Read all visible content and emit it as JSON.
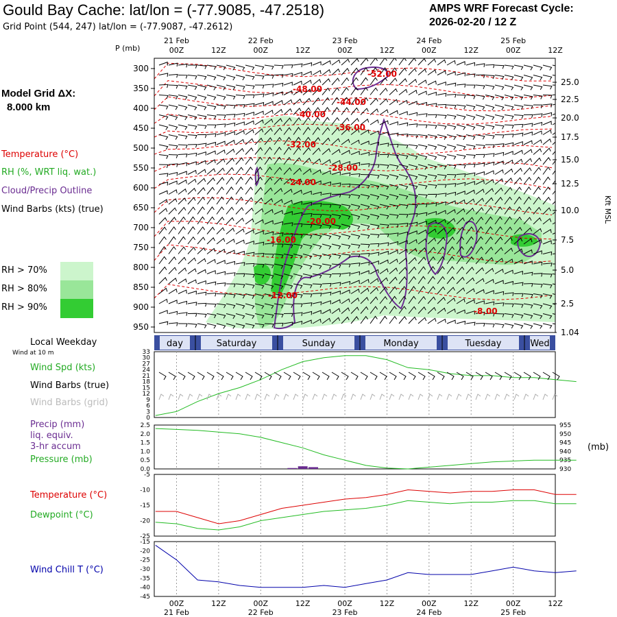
{
  "header": {
    "title": "Gould Bay Cache:  lat/lon = (-77.9085, -47.2518)",
    "subtitle": "Grid Point (544, 247) lat/lon = (-77.9087, -47.2612)",
    "cycle_line1": "AMPS WRF Forecast Cycle:",
    "cycle_line2": "2026-02-20 / 12  Z"
  },
  "left_panel": {
    "grid_label": "Model Grid ΔX:",
    "grid_value": "8.000 km",
    "temperature": "Temperature (°C)",
    "rh": "RH (%, WRT liq. wat.)",
    "cloud": "Cloud/Precip Outline",
    "wind": "Wind Barbs (kts) (true)",
    "rh70": "RH > 70%",
    "rh80": "RH > 80%",
    "rh90": "RH > 90%",
    "weekday_title": "Local Weekday",
    "wind10m": "Wind at 10 m",
    "wind_spd": "Wind Spd (kts)",
    "barbs_true": "Wind Barbs (true)",
    "barbs_grid": "Wind Barbs (grid)",
    "precip1": "Precip (mm)",
    "precip2": "liq. equiv.",
    "precip3": "3-hr accum",
    "pressure": "Pressure (mb)",
    "temp2": "Temperature (°C)",
    "dewpoint": "Dewpoint (°C)",
    "windchill": "Wind Chill T (°C)"
  },
  "axes": {
    "p_label": "P (mb)",
    "kft_label": "Kft MSL",
    "mb_label": "(mb)",
    "pressure_ticks": [
      "300",
      "350",
      "400",
      "450",
      "500",
      "550",
      "600",
      "650",
      "700",
      "750",
      "800",
      "850",
      "900",
      "950"
    ],
    "kft_ticks": [
      "25.0",
      "22.5",
      "20.0",
      "17.5",
      "15.0",
      "12.5",
      "10.0",
      "7.5",
      "5.0",
      "2.5",
      "1.04"
    ],
    "time_ticks": [
      "00Z",
      "12Z",
      "00Z",
      "12Z",
      "00Z",
      "12Z",
      "00Z",
      "12Z",
      "00Z",
      "12Z"
    ],
    "date_ticks": [
      "21 Feb",
      "22 Feb",
      "23 Feb",
      "24 Feb",
      "25 Feb"
    ],
    "weekdays": [
      "day",
      "Saturday",
      "Sunday",
      "Monday",
      "Tuesday",
      "Wed"
    ],
    "wind_ticks": [
      "33",
      "30",
      "27",
      "24",
      "21",
      "18",
      "15",
      "12",
      "9",
      "6",
      "3",
      "0"
    ],
    "precip_ticks": [
      "2.5",
      "2.0",
      "1.5",
      "1.0",
      "0.5",
      "0.0"
    ],
    "mslp_ticks": [
      "955",
      "950",
      "945",
      "940",
      "935",
      "930"
    ],
    "temp_ticks": [
      "-5",
      "-10",
      "-15",
      "-20",
      "-25"
    ],
    "chill_ticks": [
      "-15",
      "-20",
      "-25",
      "-30",
      "-35",
      "-40",
      "-45"
    ]
  },
  "contour_labels": [
    "-52.00",
    "-48.00",
    "-44.00",
    "-40.00",
    "-36.00",
    "-32.00",
    "-28.00",
    "-24.00",
    "-20.00",
    "-16.00",
    "-12.00",
    "-8.00"
  ],
  "colors": {
    "rh70": "#ccf5cc",
    "rh80": "#99e699",
    "rh90": "#33cc33",
    "temp": "#dd0000",
    "dew": "#22bb22",
    "cloud": "#6a2c91",
    "chill": "#0000aa",
    "weekday_bar": "#3a4fa0"
  },
  "chart_data": [
    {
      "type": "line",
      "title": "Wind Spd (kts)",
      "x_hours": [
        0,
        6,
        12,
        18,
        24,
        30,
        36,
        42,
        48,
        54,
        60,
        66,
        72,
        78,
        84,
        90,
        96,
        102,
        108,
        114,
        120
      ],
      "series": [
        {
          "name": "Wind Spd (kts)",
          "values": [
            1,
            3,
            8,
            12,
            15,
            19,
            24,
            28,
            30,
            31,
            31,
            29,
            25,
            24,
            22,
            21,
            21,
            20,
            20,
            19,
            18
          ]
        }
      ],
      "ylim": [
        0,
        33
      ]
    },
    {
      "type": "line",
      "title": "Pressure (mb)",
      "x_hours": [
        0,
        6,
        12,
        18,
        24,
        30,
        36,
        42,
        48,
        54,
        60,
        66,
        72,
        78,
        84,
        90,
        96,
        102,
        108,
        114,
        120
      ],
      "series": [
        {
          "name": "Pressure (mb)",
          "values": [
            953,
            952.5,
            952,
            951,
            950,
            948,
            945,
            942,
            938,
            935,
            932,
            930.5,
            930,
            931,
            932,
            933,
            934,
            934.5,
            935,
            935,
            935
          ]
        }
      ],
      "ylim": [
        930,
        955
      ]
    },
    {
      "type": "bar",
      "title": "Precip (mm)",
      "x_hours": [
        39,
        42,
        45
      ],
      "values": [
        0.05,
        0.15,
        0.1
      ],
      "ylim": [
        0,
        2.5
      ]
    },
    {
      "type": "line",
      "title": "Temperature / Dewpoint",
      "x_hours": [
        0,
        6,
        12,
        18,
        24,
        30,
        36,
        42,
        48,
        54,
        60,
        66,
        72,
        78,
        84,
        90,
        96,
        102,
        108,
        114,
        120
      ],
      "series": [
        {
          "name": "Temperature (°C)",
          "values": [
            -17,
            -17,
            -19,
            -21,
            -20,
            -18,
            -16,
            -15,
            -14,
            -13,
            -12.5,
            -11.5,
            -10,
            -10.5,
            -11,
            -10.5,
            -10.5,
            -10,
            -10,
            -11.5,
            -11.5
          ]
        },
        {
          "name": "Dewpoint (°C)",
          "values": [
            -20.5,
            -21,
            -22.5,
            -23,
            -22,
            -20,
            -19,
            -18,
            -17,
            -16.5,
            -16,
            -15,
            -13.5,
            -14,
            -14.5,
            -14,
            -14,
            -13.5,
            -13.5,
            -14.5,
            -14.5
          ]
        }
      ],
      "ylim": [
        -25,
        -5
      ]
    },
    {
      "type": "line",
      "title": "Wind Chill T (°C)",
      "x_hours": [
        0,
        6,
        12,
        18,
        24,
        30,
        36,
        42,
        48,
        54,
        60,
        66,
        72,
        78,
        84,
        90,
        96,
        102,
        108,
        114,
        120
      ],
      "series": [
        {
          "name": "Wind Chill T (°C)",
          "values": [
            -17,
            -25,
            -36,
            -37,
            -39,
            -40,
            -40,
            -40,
            -39,
            -40,
            -38,
            -36,
            -32,
            -33,
            -33,
            -33,
            -31,
            -29,
            -31,
            -32,
            -31
          ]
        }
      ],
      "ylim": [
        -45,
        -15
      ]
    }
  ]
}
